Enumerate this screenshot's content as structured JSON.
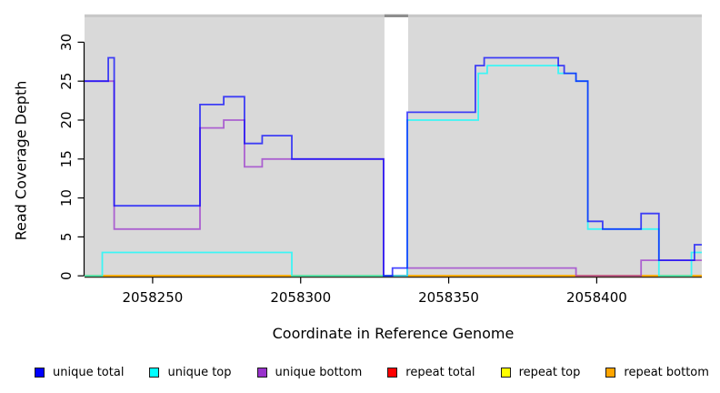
{
  "chart_data": {
    "type": "line",
    "subtype": "step-coverage",
    "title": "",
    "xlabel": "Coordinate in Reference Genome",
    "ylabel": "Read Coverage Depth",
    "xlim": [
      2058227,
      2058435.5
    ],
    "ylim": [
      0,
      33.2
    ],
    "x_tick_values": [
      2058250,
      2058300,
      2058350,
      2058400
    ],
    "y_tick_values": [
      0,
      5,
      10,
      15,
      20,
      25,
      30
    ],
    "grid": false,
    "legend_position": "bottom",
    "panel_color": "#d9d9d9",
    "top_band_color": "#c8c8c8",
    "panels": [
      {
        "start": 2058227,
        "end": 2058328.3
      },
      {
        "start": 2058336.3,
        "end": 2058435.5
      }
    ],
    "gap_band": {
      "start": 2058328.3,
      "end": 2058336.3,
      "color": "#8e8e8e"
    },
    "line_opacity": 0.72,
    "line_width": 1.8,
    "series": [
      {
        "name": "repeat total",
        "color": "#FF0000",
        "steps": [
          [
            2058227,
            0
          ]
        ]
      },
      {
        "name": "repeat top",
        "color": "#FFFF00",
        "steps": [
          [
            2058227,
            0
          ]
        ]
      },
      {
        "name": "repeat bottom",
        "color": "#FFA500",
        "steps": [
          [
            2058227,
            0
          ]
        ]
      },
      {
        "name": "unique bottom",
        "color": "#9932CC",
        "steps": [
          [
            2058227,
            25
          ],
          [
            2058237,
            6
          ],
          [
            2058266,
            19
          ],
          [
            2058274,
            20
          ],
          [
            2058281,
            14
          ],
          [
            2058287,
            15
          ],
          [
            2058328,
            0
          ],
          [
            2058336,
            1
          ],
          [
            2058393,
            0
          ],
          [
            2058415,
            2
          ]
        ]
      },
      {
        "name": "unique top",
        "color": "#00FFFF",
        "steps": [
          [
            2058227,
            0
          ],
          [
            2058233,
            3
          ],
          [
            2058297,
            0
          ],
          [
            2058336,
            20
          ],
          [
            2058360,
            26
          ],
          [
            2058363,
            27
          ],
          [
            2058387,
            26
          ],
          [
            2058393,
            25
          ],
          [
            2058397,
            6
          ],
          [
            2058421,
            0
          ],
          [
            2058432,
            3
          ]
        ]
      },
      {
        "name": "unique total",
        "color": "#0000FF",
        "steps": [
          [
            2058227,
            25
          ],
          [
            2058235,
            28
          ],
          [
            2058237,
            9
          ],
          [
            2058266,
            22
          ],
          [
            2058274,
            23
          ],
          [
            2058281,
            17
          ],
          [
            2058287,
            18
          ],
          [
            2058297,
            15
          ],
          [
            2058328,
            0
          ],
          [
            2058331,
            1
          ],
          [
            2058336,
            21
          ],
          [
            2058359,
            27
          ],
          [
            2058362,
            28
          ],
          [
            2058387,
            27
          ],
          [
            2058389,
            26
          ],
          [
            2058393,
            25
          ],
          [
            2058397,
            7
          ],
          [
            2058402,
            6
          ],
          [
            2058415,
            8
          ],
          [
            2058421,
            2
          ],
          [
            2058433,
            4
          ]
        ]
      }
    ],
    "legend": [
      {
        "label": "unique total",
        "color": "#0000FF"
      },
      {
        "label": "unique top",
        "color": "#00FFFF"
      },
      {
        "label": "unique bottom",
        "color": "#9932CC"
      },
      {
        "label": "repeat total",
        "color": "#FF0000"
      },
      {
        "label": "repeat top",
        "color": "#FFFF00"
      },
      {
        "label": "repeat bottom",
        "color": "#FFA500"
      }
    ]
  }
}
